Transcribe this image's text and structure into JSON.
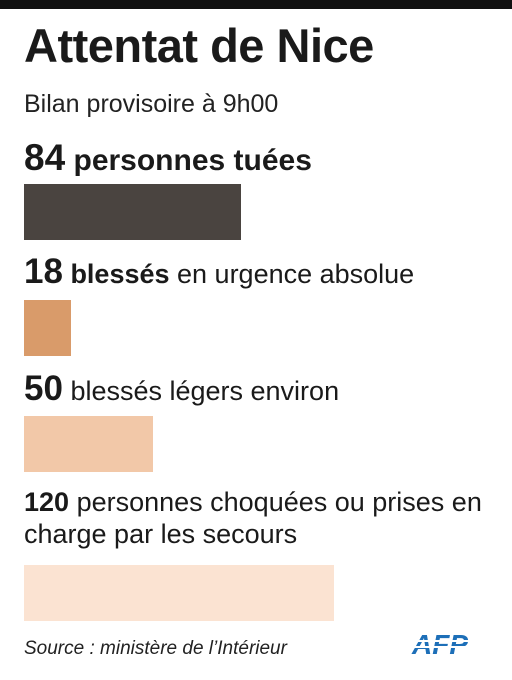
{
  "title": "Attentat de Nice",
  "subtitle": "Bilan provisoire à 9h00",
  "source": "Source : ministère de l’Intérieur",
  "logo_text": "AFP",
  "colors": {
    "tues": "#4a4440",
    "urgence": "#d99b6a",
    "legers": "#f2c8a8",
    "choquees": "#fbe3d2",
    "logo": "#1d6fb8"
  },
  "chart_data": {
    "type": "bar",
    "title": "Attentat de Nice",
    "subtitle": "Bilan provisoire à 9h00",
    "categories": [
      "personnes tuées",
      "blessés en urgence absolue",
      "blessés légers environ",
      "personnes choquées ou prises en charge par les secours"
    ],
    "values": [
      84,
      18,
      50,
      120
    ],
    "labels": [
      {
        "num": "84",
        "bold": "",
        "text": " personnes tuées"
      },
      {
        "num": "18",
        "bold": " blessés",
        "text": " en urgence absolue"
      },
      {
        "num": "50",
        "bold": "",
        "text": " blessés légers environ"
      },
      {
        "num": "120",
        "bold": "",
        "text": " personnes choquées ou prises en charge par les secours"
      }
    ]
  }
}
